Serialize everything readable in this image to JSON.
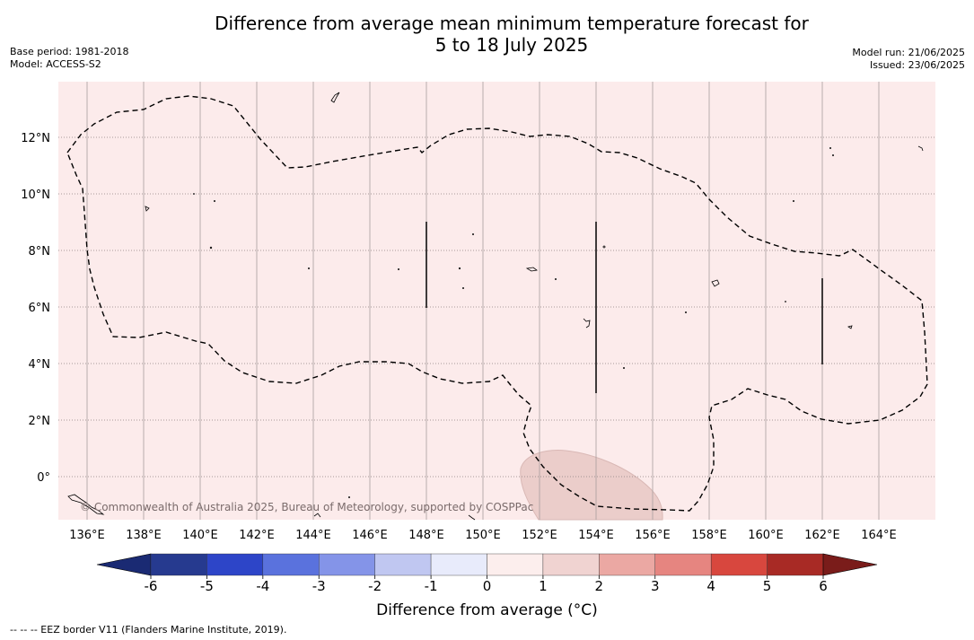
{
  "title_line1": "Difference from average mean minimum temperature forecast for",
  "title_line2": "5 to 18 July 2025",
  "base_period": "Base period: 1981-2018",
  "model": "Model: ACCESS-S2",
  "model_run": "Model run: 21/06/2025",
  "issued": "Issued: 23/06/2025",
  "copyright": "© Commonwealth of Australia 2025, Bureau of Meteorology, supported by COSPPac",
  "footnote": "--  --  -- EEZ border V11 (Flanders Marine Institute, 2019).",
  "colorbar_label": "Difference from average (°C)",
  "lon_labels": [
    "136°E",
    "138°E",
    "140°E",
    "142°E",
    "144°E",
    "146°E",
    "148°E",
    "150°E",
    "152°E",
    "154°E",
    "156°E",
    "158°E",
    "160°E",
    "162°E",
    "164°E"
  ],
  "lat_labels": [
    "12°N",
    "10°N",
    "8°N",
    "6°N",
    "4°N",
    "2°N",
    "0°"
  ],
  "colorbar": {
    "ticks": [
      "-6",
      "-5",
      "-4",
      "-3",
      "-2",
      "-1",
      "0",
      "1",
      "2",
      "3",
      "4",
      "5",
      "6"
    ],
    "colors": [
      "#263a8f",
      "#2d45c8",
      "#5a72dd",
      "#8494e8",
      "#c0c7f1",
      "#e8ebfb",
      "#fceeed",
      "#f0d3d1",
      "#eba8a3",
      "#e68580",
      "#d8473e",
      "#a82a25"
    ],
    "under_color": "#1a2a73",
    "over_color": "#7a1c1a"
  },
  "background_color": "#fcebeb"
}
